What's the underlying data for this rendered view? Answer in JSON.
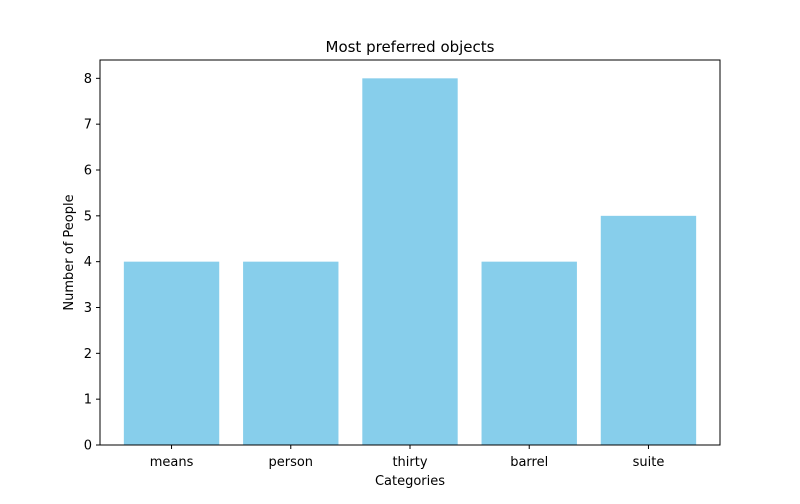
{
  "chart_data": {
    "type": "bar",
    "title": "Most preferred objects",
    "xlabel": "Categories",
    "ylabel": "Number of People",
    "categories": [
      "means",
      "person",
      "thirty",
      "barrel",
      "suite"
    ],
    "values": [
      4,
      4,
      8,
      4,
      5
    ],
    "ylim": [
      0,
      8.4
    ],
    "yticks": [
      0,
      1,
      2,
      3,
      4,
      5,
      6,
      7,
      8
    ],
    "bar_color": "#87CEEB",
    "grid": false,
    "legend": "none"
  }
}
